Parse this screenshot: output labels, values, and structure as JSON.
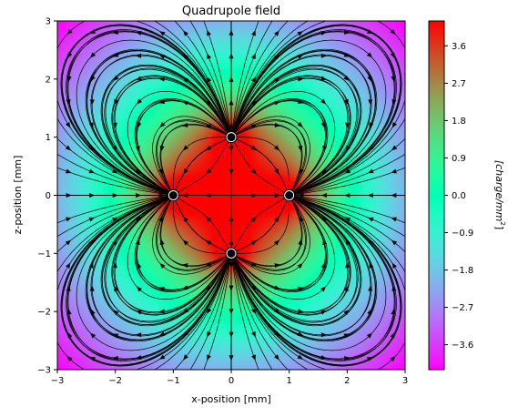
{
  "chart_data": {
    "type": "heatmap",
    "title": "Quadrupole field",
    "xlabel": "x-position [mm]",
    "ylabel": "z-position [mm]",
    "xlim": [
      -3,
      3
    ],
    "ylim": [
      -3,
      3
    ],
    "x_ticks": [
      "−3",
      "−2",
      "−1",
      "0",
      "1",
      "2",
      "3"
    ],
    "y_ticks": [
      "−3",
      "−2",
      "−1",
      "0",
      "1",
      "2",
      "3"
    ],
    "charges": [
      {
        "x": 0,
        "z": 1,
        "sign": "positive"
      },
      {
        "x": 0,
        "z": -1,
        "sign": "positive"
      },
      {
        "x": -1,
        "z": 0,
        "sign": "negative"
      },
      {
        "x": 1,
        "z": 0,
        "sign": "negative"
      }
    ],
    "overlay": "streamlines",
    "colormap": "rainbow",
    "colorbar": {
      "label_prefix": "[charge/mm",
      "label_exponent": "2",
      "label_suffix": "]",
      "range": [
        -4.2,
        4.2
      ],
      "ticks": [
        "3.6",
        "2.7",
        "1.8",
        "0.9",
        "0.0",
        "−0.9",
        "−1.8",
        "−2.7",
        "−3.6"
      ],
      "tick_values": [
        3.6,
        2.7,
        1.8,
        0.9,
        0.0,
        -0.9,
        -1.8,
        -2.7,
        -3.6
      ]
    },
    "grid": false,
    "legend": "none"
  }
}
